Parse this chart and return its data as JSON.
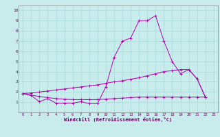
{
  "title": "",
  "xlabel": "Windchill (Refroidissement éolien,°C)",
  "ylabel": "",
  "xlim": [
    -0.5,
    23.5
  ],
  "ylim": [
    0,
    10.5
  ],
  "xticks": [
    0,
    1,
    2,
    3,
    4,
    5,
    6,
    7,
    8,
    9,
    10,
    11,
    12,
    13,
    14,
    15,
    16,
    17,
    18,
    19,
    20,
    21,
    22,
    23
  ],
  "yticks": [
    1,
    2,
    3,
    4,
    5,
    6,
    7,
    8,
    9,
    10
  ],
  "bg_color": "#c8ecec",
  "grid_color": "#a8d8d8",
  "line_color": "#aa00aa",
  "curve1_x": [
    0,
    1,
    2,
    3,
    4,
    5,
    6,
    7,
    8,
    9,
    10,
    11,
    12,
    13,
    14,
    15,
    16,
    17,
    18,
    19,
    20,
    21,
    22
  ],
  "curve1_y": [
    1.85,
    1.65,
    1.05,
    1.35,
    0.9,
    0.9,
    0.9,
    1.05,
    0.85,
    0.85,
    2.5,
    5.4,
    7.0,
    7.3,
    9.0,
    9.0,
    9.5,
    7.0,
    5.0,
    3.8,
    4.2,
    3.3,
    1.5
  ],
  "curve2_x": [
    0,
    1,
    2,
    3,
    4,
    5,
    6,
    7,
    8,
    9,
    10,
    11,
    12,
    13,
    14,
    15,
    16,
    17,
    18,
    19,
    20,
    21,
    22
  ],
  "curve2_y": [
    1.85,
    1.9,
    2.0,
    2.1,
    2.2,
    2.3,
    2.4,
    2.5,
    2.6,
    2.7,
    2.85,
    3.0,
    3.1,
    3.25,
    3.4,
    3.6,
    3.8,
    4.0,
    4.1,
    4.2,
    4.2,
    3.3,
    1.5
  ],
  "curve3_x": [
    0,
    1,
    2,
    3,
    4,
    5,
    6,
    7,
    8,
    9,
    10,
    11,
    12,
    13,
    14,
    15,
    16,
    17,
    18,
    19,
    20,
    21,
    22
  ],
  "curve3_y": [
    1.85,
    1.7,
    1.55,
    1.45,
    1.35,
    1.3,
    1.25,
    1.25,
    1.25,
    1.25,
    1.3,
    1.35,
    1.4,
    1.45,
    1.5,
    1.5,
    1.5,
    1.5,
    1.5,
    1.5,
    1.5,
    1.5,
    1.5
  ]
}
